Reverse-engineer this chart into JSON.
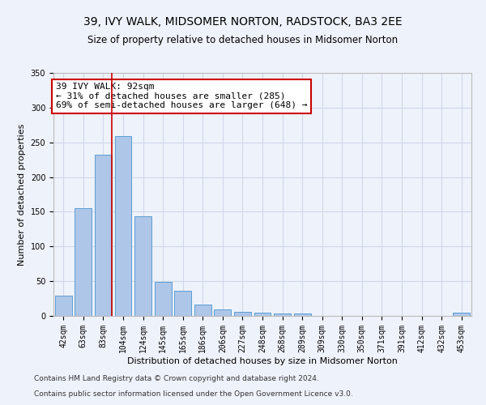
{
  "title": "39, IVY WALK, MIDSOMER NORTON, RADSTOCK, BA3 2EE",
  "subtitle": "Size of property relative to detached houses in Midsomer Norton",
  "xlabel": "Distribution of detached houses by size in Midsomer Norton",
  "ylabel": "Number of detached properties",
  "footnote1": "Contains HM Land Registry data © Crown copyright and database right 2024.",
  "footnote2": "Contains public sector information licensed under the Open Government Licence v3.0.",
  "categories": [
    "42sqm",
    "63sqm",
    "83sqm",
    "104sqm",
    "124sqm",
    "145sqm",
    "165sqm",
    "186sqm",
    "206sqm",
    "227sqm",
    "248sqm",
    "268sqm",
    "289sqm",
    "309sqm",
    "330sqm",
    "350sqm",
    "371sqm",
    "391sqm",
    "412sqm",
    "432sqm",
    "453sqm"
  ],
  "values": [
    29,
    155,
    232,
    259,
    144,
    49,
    36,
    16,
    9,
    6,
    5,
    4,
    3,
    0,
    0,
    0,
    0,
    0,
    0,
    0,
    5
  ],
  "bar_color": "#aec6e8",
  "bar_edge_color": "#5a9fd4",
  "grid_color": "#d0d8e8",
  "background_color": "#eef2fa",
  "annotation_text": "39 IVY WALK: 92sqm\n← 31% of detached houses are smaller (285)\n69% of semi-detached houses are larger (648) →",
  "annotation_box_color": "#ffffff",
  "annotation_border_color": "#cc0000",
  "ylim": [
    0,
    350
  ],
  "title_fontsize": 10,
  "subtitle_fontsize": 8.5,
  "axis_label_fontsize": 8,
  "tick_fontsize": 7,
  "annotation_fontsize": 8,
  "footnote_fontsize": 6.5
}
